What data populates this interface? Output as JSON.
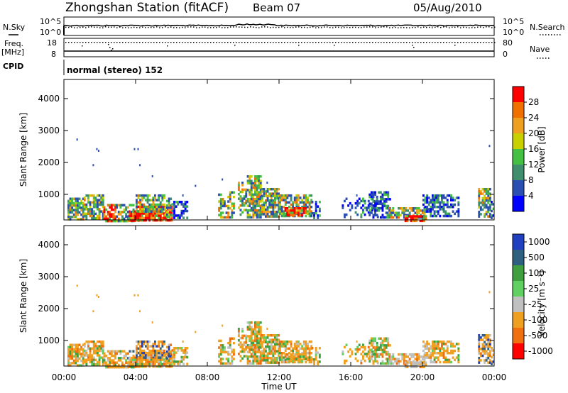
{
  "header": {
    "station_title": "Zhongshan Station (fitACF)",
    "beam": "Beam 07",
    "date": "05/Aug/2010"
  },
  "status_panels": {
    "nsky_label": "N.Sky",
    "nsearch_label": "N.Search",
    "freq_label_1": "Freq.",
    "freq_label_2": "[MHz]",
    "nave_label": "Nave",
    "cpid_label": "CPID",
    "cpid_text": "normal (stereo) 152",
    "noise_left_ticks": [
      "10^5",
      "10^0"
    ],
    "noise_right_ticks": [
      "10^5",
      "10^0"
    ],
    "freq_left_ticks": [
      "18",
      "8"
    ],
    "freq_right_ticks": [
      "80",
      "0"
    ]
  },
  "colors": {
    "power": [
      "#0000ff",
      "#2a4fb0",
      "#3f8f6e",
      "#44c044",
      "#c8d000",
      "#f0a020",
      "#f07000",
      "#ff0000"
    ],
    "velocity": [
      "#2040c0",
      "#306080",
      "#40a040",
      "#60d060",
      "#c0c0c0",
      "#f0a020",
      "#f07010",
      "#ff0000"
    ]
  },
  "chart_data": [
    {
      "type": "heatmap",
      "panel": "power",
      "ylabel": "Slant Range [km]",
      "yticks": [
        "1000",
        "2000",
        "3000",
        "4000"
      ],
      "ylim": [
        200,
        4600
      ],
      "xlim": [
        0,
        24
      ],
      "colorbar_label": "Power [dB]",
      "colorbar_ticks": [
        "4",
        "8",
        "12",
        "16",
        "20",
        "24",
        "28"
      ],
      "clim": [
        0,
        32
      ]
    },
    {
      "type": "heatmap",
      "panel": "velocity",
      "ylabel": "Slant Range [km]",
      "yticks": [
        "1000",
        "2000",
        "3000",
        "4000"
      ],
      "ylim": [
        200,
        4600
      ],
      "xlim": [
        0,
        24
      ],
      "colorbar_label": "Velocity [m s⁻¹]",
      "colorbar_ticks": [
        "1000",
        "500",
        "100",
        "25",
        "-25",
        "-100",
        "-500",
        "-1000"
      ]
    }
  ],
  "xaxis": {
    "ticks": [
      "00:00",
      "04:00",
      "08:00",
      "12:00",
      "16:00",
      "20:00",
      "00:00"
    ],
    "label": "Time UT"
  }
}
